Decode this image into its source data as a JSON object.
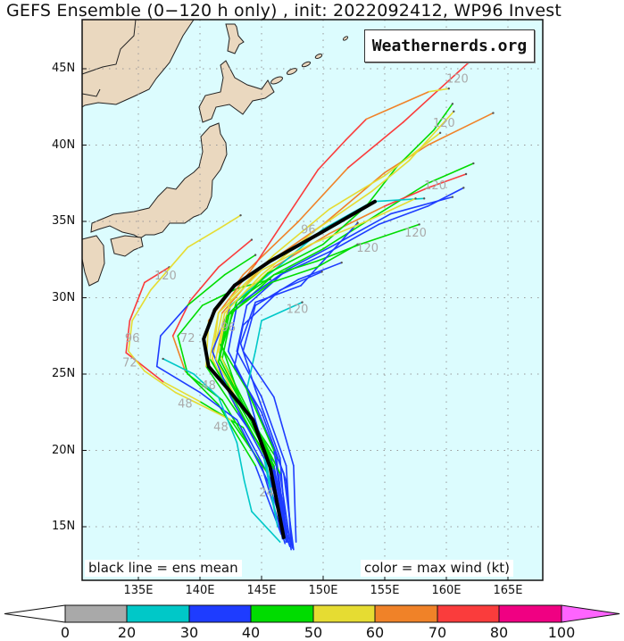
{
  "title": "GEFS Ensemble (0−120 h only) , init: 2022092412, WP96 Invest",
  "watermark": "Weathernerds.org",
  "legend_left": "black line = ens mean",
  "legend_right": "color = max wind (kt)",
  "colors": {
    "ocean": "#dcfcfe",
    "land": "#ead8bf",
    "mean_track": "#000000"
  },
  "lat_labels": [
    "45N",
    "40N",
    "35N",
    "30N",
    "25N",
    "20N",
    "15N"
  ],
  "lat_values": [
    45,
    40,
    35,
    30,
    25,
    20,
    15
  ],
  "lon_labels": [
    "135E",
    "140E",
    "145E",
    "150E",
    "155E",
    "160E",
    "165E"
  ],
  "lon_values": [
    135,
    140,
    145,
    150,
    155,
    160,
    165
  ],
  "colorbar": {
    "labels": [
      "0",
      "20",
      "30",
      "40",
      "50",
      "60",
      "70",
      "80",
      "100"
    ],
    "bounds": [
      0,
      20,
      30,
      40,
      50,
      60,
      70,
      80,
      100
    ],
    "colors": [
      "#a9a9a9",
      "#00c8c8",
      "#1e3cff",
      "#00dc00",
      "#e6dc32",
      "#f08228",
      "#fa3c3c",
      "#f00082",
      "#ff64ff"
    ]
  },
  "chart_data": {
    "type": "track-map",
    "mean_track": [
      [
        146.8,
        14.3
      ],
      [
        145.7,
        18.9
      ],
      [
        144.3,
        22.0
      ],
      [
        142.4,
        23.9
      ],
      [
        140.7,
        25.5
      ],
      [
        140.3,
        27.3
      ],
      [
        141.2,
        29.2
      ],
      [
        142.8,
        30.8
      ],
      [
        145.7,
        32.4
      ],
      [
        149.9,
        34.3
      ],
      [
        154.2,
        36.3
      ]
    ],
    "members": [
      [
        [
          147,
          14,
          25
        ],
        [
          145.8,
          18,
          28
        ],
        [
          143.5,
          21.5,
          35
        ],
        [
          140,
          23.2,
          45
        ],
        [
          137,
          24.5,
          55
        ],
        [
          134,
          26.4,
          70
        ],
        [
          134.3,
          28.5,
          72
        ],
        [
          135.5,
          31,
          75
        ],
        [
          137.5,
          32,
          75
        ]
      ],
      [
        [
          147.2,
          14.2,
          28
        ],
        [
          145.5,
          18.5,
          32
        ],
        [
          142.5,
          22,
          42
        ],
        [
          138,
          23.8,
          50
        ],
        [
          135.5,
          25.2,
          55
        ],
        [
          134.2,
          26.5,
          55
        ],
        [
          134.5,
          28.5,
          55
        ],
        [
          136,
          30.5,
          55
        ],
        [
          139,
          33.3,
          55
        ],
        [
          141.5,
          34.5,
          55
        ],
        [
          143.3,
          35.4,
          55
        ]
      ],
      [
        [
          146.6,
          14.5,
          28
        ],
        [
          144.5,
          19,
          33
        ],
        [
          141.5,
          23,
          40
        ],
        [
          138.8,
          25.2,
          48
        ],
        [
          137.8,
          27.5,
          60
        ],
        [
          139.2,
          29.8,
          70
        ],
        [
          141.5,
          32,
          72
        ],
        [
          144.2,
          33.8,
          75
        ]
      ],
      [
        [
          146.9,
          13.9,
          28
        ],
        [
          145,
          19,
          36
        ],
        [
          141.8,
          23.3,
          40
        ],
        [
          139,
          25,
          42
        ],
        [
          138.2,
          27.5,
          45
        ],
        [
          140.2,
          29.5,
          48
        ],
        [
          143,
          30.6,
          45
        ],
        [
          145.7,
          31.2,
          45
        ]
      ],
      [
        [
          147.3,
          13.7,
          30
        ],
        [
          145.5,
          18,
          35
        ],
        [
          143,
          22,
          35
        ],
        [
          140,
          23.8,
          35
        ],
        [
          136.5,
          25.5,
          35
        ],
        [
          136.8,
          27.5,
          35
        ],
        [
          139,
          29.5,
          38
        ],
        [
          142,
          31.5,
          40
        ],
        [
          144.5,
          32.8,
          40
        ]
      ],
      [
        [
          146.5,
          14,
          22
        ],
        [
          144.2,
          16,
          25
        ],
        [
          143.6,
          18,
          25
        ],
        [
          143,
          20.5,
          25
        ],
        [
          141.5,
          23.5,
          25
        ],
        [
          139.5,
          25,
          25
        ],
        [
          137,
          26,
          28
        ]
      ],
      [
        [
          147,
          14.2,
          30
        ],
        [
          146,
          19,
          35
        ],
        [
          143,
          22.5,
          38
        ],
        [
          140.5,
          25.5,
          45
        ],
        [
          140.7,
          28.5,
          55
        ],
        [
          143.5,
          31.5,
          60
        ],
        [
          148,
          35,
          65
        ],
        [
          152,
          38.5,
          65
        ],
        [
          156.5,
          41.5,
          70
        ],
        [
          161.8,
          45.4,
          70
        ]
      ],
      [
        [
          147.1,
          14,
          30
        ],
        [
          146.2,
          19.5,
          36
        ],
        [
          143.5,
          22.8,
          40
        ],
        [
          141,
          25.8,
          48
        ],
        [
          141.5,
          29,
          58
        ],
        [
          144.5,
          32.2,
          68
        ],
        [
          149.6,
          38.4,
          72
        ],
        [
          151.8,
          40.3,
          72
        ],
        [
          153.5,
          41.7,
          72
        ],
        [
          158.6,
          43.5,
          60
        ],
        [
          160.2,
          43.7,
          55
        ]
      ],
      [
        [
          146.8,
          14.3,
          30
        ],
        [
          145.5,
          19.5,
          38
        ],
        [
          142.8,
          23,
          42
        ],
        [
          141,
          26,
          50
        ],
        [
          141.8,
          29,
          58
        ],
        [
          145,
          32,
          62
        ],
        [
          150,
          34.8,
          65
        ],
        [
          155,
          38.2,
          65
        ],
        [
          158.5,
          40,
          65
        ],
        [
          163.8,
          42.1,
          65
        ]
      ],
      [
        [
          147.4,
          13.5,
          30
        ],
        [
          146.5,
          18.5,
          38
        ],
        [
          144,
          22.5,
          42
        ],
        [
          141.8,
          26,
          45
        ],
        [
          142.6,
          29,
          48
        ],
        [
          146,
          31.5,
          48
        ],
        [
          150,
          33.2,
          48
        ],
        [
          154.5,
          35.5,
          48
        ],
        [
          158.5,
          37.5,
          48
        ],
        [
          162.2,
          38.8,
          45
        ]
      ],
      [
        [
          147.2,
          14,
          32
        ],
        [
          146,
          19,
          38
        ],
        [
          143.5,
          23,
          42
        ],
        [
          141.5,
          26.5,
          50
        ],
        [
          142.5,
          29.5,
          55
        ],
        [
          146,
          32,
          58
        ],
        [
          150.5,
          34.2,
          60
        ],
        [
          155,
          36,
          65
        ],
        [
          158.5,
          37.2,
          72
        ],
        [
          161.6,
          38.1,
          72
        ]
      ],
      [
        [
          147.6,
          13.5,
          32
        ],
        [
          146.8,
          18.5,
          35
        ],
        [
          144.5,
          23,
          36
        ],
        [
          142.3,
          26.5,
          38
        ],
        [
          143,
          29.5,
          38
        ],
        [
          146.5,
          31.5,
          38
        ],
        [
          150.5,
          33,
          38
        ],
        [
          154.5,
          34.8,
          38
        ],
        [
          158.5,
          36,
          38
        ],
        [
          161.4,
          37.2,
          38
        ]
      ],
      [
        [
          147.4,
          13.8,
          32
        ],
        [
          147,
          19,
          35
        ],
        [
          145,
          23.5,
          36
        ],
        [
          143,
          26.5,
          36
        ],
        [
          143.8,
          29.5,
          38
        ],
        [
          147,
          31.8,
          38
        ],
        [
          151,
          33.5,
          38
        ],
        [
          155.5,
          35.5,
          38
        ],
        [
          160.5,
          36.6,
          36
        ]
      ],
      [
        [
          146.7,
          14.5,
          30
        ],
        [
          145.8,
          19.5,
          38
        ],
        [
          143.2,
          23.5,
          42
        ],
        [
          141.8,
          26.8,
          45
        ],
        [
          143,
          29.8,
          45
        ],
        [
          146,
          31.5,
          45
        ],
        [
          149.5,
          32.4,
          45
        ],
        [
          153,
          33.5,
          45
        ],
        [
          157.8,
          34.8,
          42
        ]
      ],
      [
        [
          146.3,
          15,
          25
        ],
        [
          145.2,
          19.5,
          28
        ],
        [
          142.5,
          23.5,
          32
        ],
        [
          141,
          26.5,
          35
        ],
        [
          142.5,
          29.5,
          35
        ],
        [
          146,
          31.8,
          28
        ],
        [
          150,
          34.5,
          25
        ],
        [
          154,
          36.3,
          25
        ],
        [
          158.2,
          36.5,
          25
        ]
      ],
      [
        [
          147,
          14.5,
          30
        ],
        [
          146.5,
          19.5,
          34
        ],
        [
          144.5,
          24,
          36
        ],
        [
          143.3,
          27,
          36
        ],
        [
          144.5,
          29.7,
          36
        ],
        [
          148.2,
          30.8,
          36
        ],
        [
          152.8,
          34.9,
          36
        ]
      ],
      [
        [
          146.2,
          15.5,
          25
        ],
        [
          145.2,
          20,
          28
        ],
        [
          143.8,
          24,
          30
        ],
        [
          144.5,
          26.5,
          28
        ],
        [
          145,
          28.5,
          25
        ],
        [
          148.3,
          29.7,
          25
        ]
      ],
      [
        [
          147,
          14,
          30
        ],
        [
          146.2,
          19,
          38
        ],
        [
          143.5,
          23,
          42
        ],
        [
          141.6,
          26,
          45
        ],
        [
          142.4,
          29,
          48
        ],
        [
          145.5,
          31.6,
          48
        ],
        [
          150,
          33.5,
          48
        ],
        [
          153.5,
          36,
          48
        ],
        [
          156,
          38.6,
          48
        ],
        [
          159,
          41,
          48
        ],
        [
          160.5,
          42.7,
          48
        ]
      ],
      [
        [
          146.9,
          14.3,
          30
        ],
        [
          146,
          19,
          38
        ],
        [
          143.2,
          23,
          44
        ],
        [
          141.3,
          26,
          50
        ],
        [
          142,
          29,
          55
        ],
        [
          145,
          31.5,
          55
        ],
        [
          149.5,
          34.5,
          55
        ],
        [
          154,
          37,
          55
        ],
        [
          157,
          39,
          55
        ],
        [
          160.6,
          42.2,
          55
        ]
      ],
      [
        [
          147.1,
          14.6,
          30
        ],
        [
          146,
          20,
          36
        ],
        [
          143.8,
          24,
          42
        ],
        [
          141.6,
          27,
          48
        ],
        [
          142.5,
          30,
          52
        ],
        [
          146,
          32.8,
          55
        ],
        [
          150.5,
          35.8,
          55
        ],
        [
          155,
          38,
          55
        ],
        [
          159.5,
          40.8,
          55
        ]
      ],
      [
        [
          147.8,
          14,
          32
        ],
        [
          147.6,
          19,
          34
        ],
        [
          146,
          23.5,
          36
        ],
        [
          143.5,
          26.5,
          38
        ],
        [
          144.5,
          29.5,
          38
        ],
        [
          148,
          31.2,
          36
        ],
        [
          151.5,
          32.3,
          36
        ]
      ],
      [
        [
          147.5,
          13.6,
          30
        ],
        [
          147,
          18,
          35
        ],
        [
          145,
          22.5,
          36
        ],
        [
          142.8,
          25.5,
          38
        ],
        [
          143.5,
          28.2,
          38
        ],
        [
          146.5,
          30.5,
          36
        ],
        [
          149.9,
          31.7,
          36
        ]
      ],
      [
        [
          147,
          14,
          30
        ],
        [
          146,
          18.8,
          38
        ],
        [
          143.6,
          22.8,
          42
        ],
        [
          141.5,
          25.8,
          45
        ],
        [
          142.2,
          28.8,
          45
        ],
        [
          145.8,
          31,
          45
        ],
        [
          149.5,
          32,
          45
        ],
        [
          152.8,
          33.5,
          45
        ]
      ],
      [
        [
          146.7,
          14.2,
          30
        ],
        [
          145.7,
          19,
          36
        ],
        [
          143,
          23,
          42
        ],
        [
          140.8,
          26,
          48
        ],
        [
          141.5,
          29,
          55
        ],
        [
          145,
          31.8,
          55
        ],
        [
          149,
          33.5,
          55
        ],
        [
          153.5,
          35,
          55
        ],
        [
          157.5,
          36.5,
          55
        ]
      ]
    ],
    "hour_labels": [
      {
        "text": "120",
        "lon": 137.2,
        "lat": 31.2
      },
      {
        "text": "120",
        "lon": 147.9,
        "lat": 29.0
      },
      {
        "text": "120",
        "lon": 153.6,
        "lat": 33.0
      },
      {
        "text": "120",
        "lon": 157.5,
        "lat": 34.0
      },
      {
        "text": "120",
        "lon": 159.1,
        "lat": 37.1
      },
      {
        "text": "120",
        "lon": 159.8,
        "lat": 41.2
      },
      {
        "text": "120",
        "lon": 160.9,
        "lat": 44.1
      },
      {
        "text": "96",
        "lon": 134.5,
        "lat": 27.1
      },
      {
        "text": "72",
        "lon": 134.3,
        "lat": 25.5
      },
      {
        "text": "72",
        "lon": 139.0,
        "lat": 27.1
      },
      {
        "text": "96",
        "lon": 148.8,
        "lat": 34.2
      },
      {
        "text": "96",
        "lon": 142.3,
        "lat": 27.8
      },
      {
        "text": "48",
        "lon": 138.8,
        "lat": 22.8
      },
      {
        "text": "48",
        "lon": 141.7,
        "lat": 21.3
      },
      {
        "text": "48",
        "lon": 140.7,
        "lat": 24.0
      },
      {
        "text": "24",
        "lon": 145.4,
        "lat": 17.0
      }
    ]
  }
}
